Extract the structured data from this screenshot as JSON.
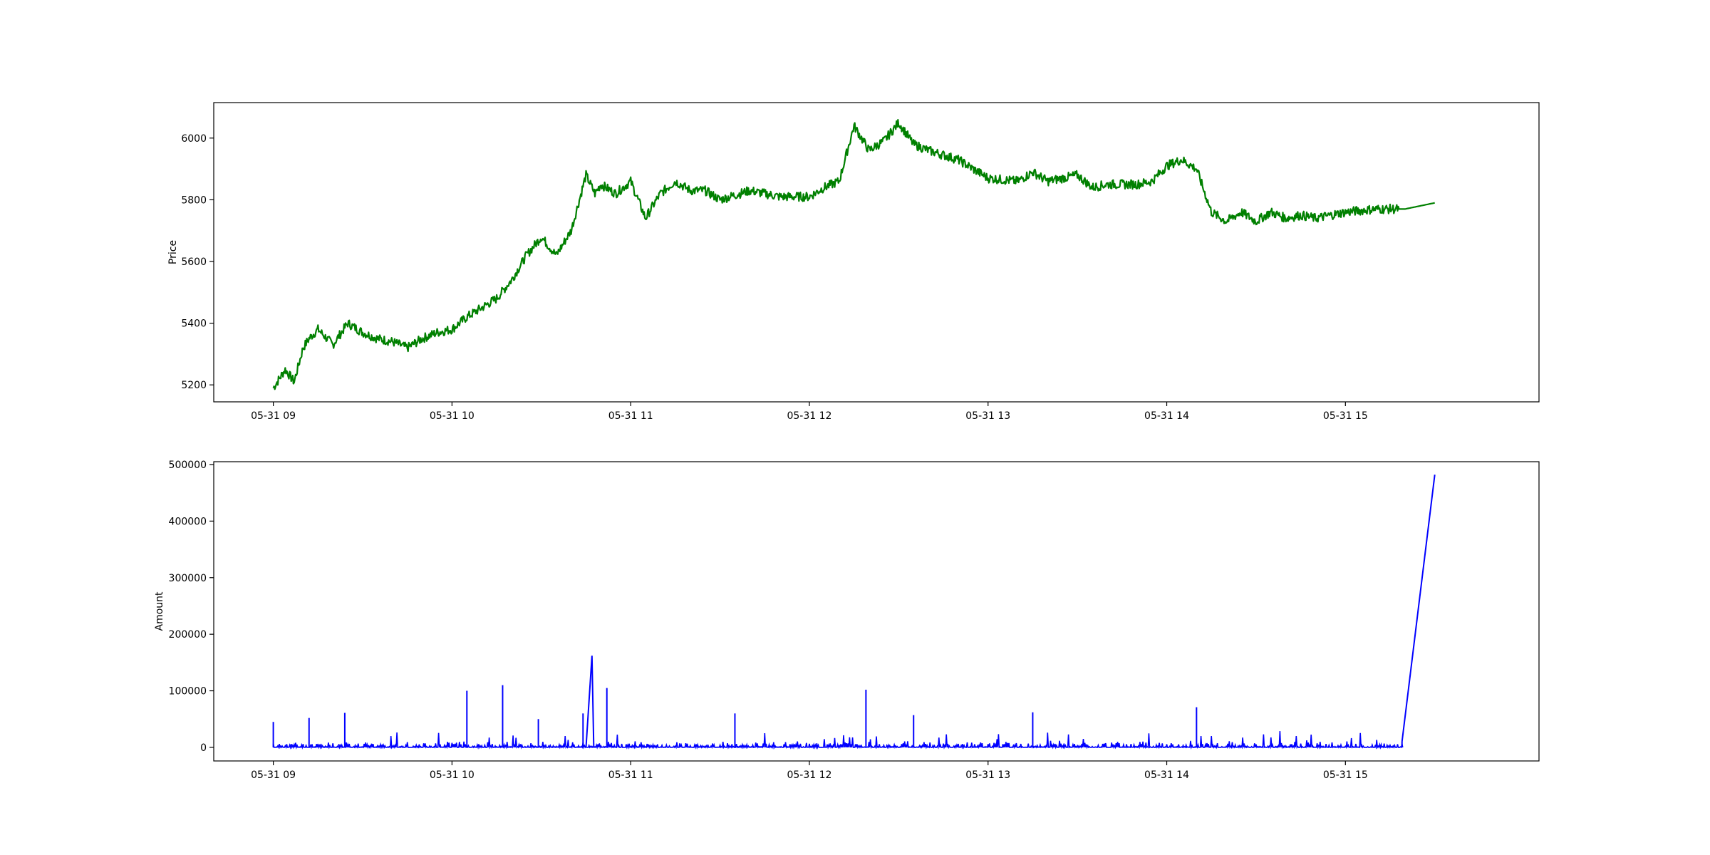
{
  "chart_data": [
    {
      "type": "line",
      "title": "",
      "xlabel": "",
      "ylabel": "Price",
      "xlim": [
        "05-31 08:40",
        "05-31 16:05"
      ],
      "ylim": [
        5145,
        6115
      ],
      "yticks": [
        5200,
        5400,
        5600,
        5800,
        6000
      ],
      "xticks": [
        "05-31 09",
        "05-31 10",
        "05-31 11",
        "05-31 12",
        "05-31 13",
        "05-31 14",
        "05-31 15"
      ],
      "grid": false,
      "color": "#008000",
      "series": [
        {
          "x": [
            "05-31 09:00",
            "05-31 09:04",
            "05-31 09:07",
            "05-31 09:10",
            "05-31 09:12",
            "05-31 09:15",
            "05-31 09:20",
            "05-31 09:25",
            "05-31 09:30",
            "05-31 09:35",
            "05-31 09:40",
            "05-31 09:45",
            "05-31 09:50",
            "05-31 09:55",
            "05-31 10:00",
            "05-31 10:05",
            "05-31 10:10",
            "05-31 10:15",
            "05-31 10:20",
            "05-31 10:25",
            "05-31 10:30",
            "05-31 10:35",
            "05-31 10:40",
            "05-31 10:45",
            "05-31 10:48",
            "05-31 10:50",
            "05-31 10:55",
            "05-31 11:00",
            "05-31 11:05",
            "05-31 11:08",
            "05-31 11:10",
            "05-31 11:15",
            "05-31 11:20",
            "05-31 11:25",
            "05-31 11:30",
            "05-31 11:40",
            "05-31 11:50",
            "05-31 12:00",
            "05-31 12:05",
            "05-31 12:10",
            "05-31 12:15",
            "05-31 12:20",
            "05-31 12:25",
            "05-31 12:30",
            "05-31 12:35",
            "05-31 12:40",
            "05-31 12:50",
            "05-31 13:00",
            "05-31 13:10",
            "05-31 13:15",
            "05-31 13:20",
            "05-31 13:30",
            "05-31 13:35",
            "05-31 13:40",
            "05-31 13:50",
            "05-31 13:55",
            "05-31 14:00",
            "05-31 14:05",
            "05-31 14:10",
            "05-31 14:15",
            "05-31 14:20",
            "05-31 14:25",
            "05-31 14:30",
            "05-31 14:35",
            "05-31 14:40",
            "05-31 14:45",
            "05-31 14:50",
            "05-31 15:00",
            "05-31 15:10",
            "05-31 15:20",
            "05-31 15:30"
          ],
          "y": [
            5190,
            5250,
            5210,
            5320,
            5350,
            5380,
            5330,
            5400,
            5370,
            5350,
            5340,
            5320,
            5350,
            5370,
            5380,
            5420,
            5450,
            5480,
            5540,
            5620,
            5680,
            5620,
            5700,
            5880,
            5820,
            5850,
            5820,
            5860,
            5740,
            5790,
            5820,
            5860,
            5830,
            5830,
            5800,
            5830,
            5810,
            5810,
            5840,
            5860,
            6040,
            5960,
            5990,
            6050,
            5980,
            5960,
            5930,
            5870,
            5860,
            5890,
            5860,
            5880,
            5840,
            5850,
            5850,
            5860,
            5910,
            5930,
            5900,
            5760,
            5730,
            5760,
            5730,
            5760,
            5740,
            5750,
            5740,
            5760,
            5770,
            5770,
            5790
          ]
        }
      ]
    },
    {
      "type": "line",
      "title": "",
      "xlabel": "",
      "ylabel": "Amount",
      "xlim": [
        "05-31 08:40",
        "05-31 16:05"
      ],
      "ylim": [
        -24000,
        505000
      ],
      "yticks": [
        0,
        100000,
        200000,
        300000,
        400000,
        500000
      ],
      "xticks": [
        "05-31 09",
        "05-31 10",
        "05-31 11",
        "05-31 12",
        "05-31 13",
        "05-31 14",
        "05-31 15"
      ],
      "grid": false,
      "color": "#0000ff",
      "series": [
        {
          "x": [
            "05-31 09:00",
            "05-31 09:12",
            "05-31 09:24",
            "05-31 10:05",
            "05-31 10:17",
            "05-31 10:29",
            "05-31 10:44",
            "05-31 10:47",
            "05-31 10:52",
            "05-31 11:35",
            "05-31 12:19",
            "05-31 12:35",
            "05-31 13:15",
            "05-31 14:10",
            "05-31 15:19",
            "05-31 15:30"
          ],
          "y": [
            45000,
            52000,
            61000,
            100000,
            110000,
            50000,
            60000,
            162000,
            105000,
            60000,
            102000,
            57000,
            62000,
            71000,
            10000,
            482000
          ]
        }
      ]
    }
  ]
}
